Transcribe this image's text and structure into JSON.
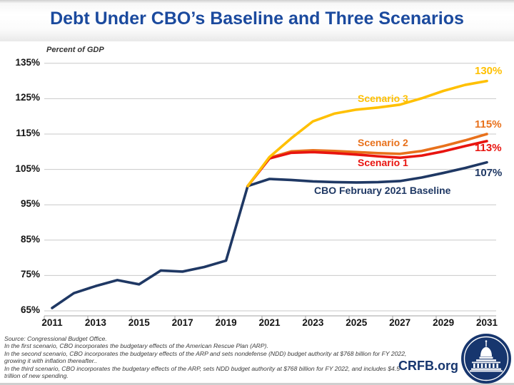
{
  "title": "Debt Under CBO’s Baseline and Three Scenarios",
  "chart_data": {
    "type": "line",
    "title": "Debt Under CBO’s Baseline and Three Scenarios",
    "ylabel": "Percent of GDP",
    "ylim": [
      65,
      135
    ],
    "y_ticks": [
      65,
      75,
      85,
      95,
      105,
      115,
      125,
      135
    ],
    "y_tick_suffix": "%",
    "x_range": [
      2011,
      2031
    ],
    "x_tick_labels": [
      "2011",
      "2013",
      "2015",
      "2017",
      "2019",
      "2021",
      "2023",
      "2025",
      "2027",
      "2029",
      "2031"
    ],
    "grid": "horizontal",
    "legend_position": "inline-annotations",
    "series": [
      {
        "name": "CBO February 2021 Baseline",
        "end_label": "107%",
        "color": "#1F3864",
        "start_year": 2011,
        "values": [
          65.8,
          70.0,
          72.0,
          73.7,
          72.5,
          76.4,
          76.1,
          77.4,
          79.2,
          100.3,
          102.3,
          102.0,
          101.6,
          101.4,
          101.3,
          101.4,
          101.7,
          102.7,
          104.0,
          105.4,
          107.0
        ]
      },
      {
        "name": "Scenario 2",
        "end_label": "115%",
        "color": "#E8711C",
        "start_year": 2020,
        "values": [
          100.3,
          108.3,
          110.1,
          110.4,
          110.2,
          109.9,
          109.6,
          109.4,
          110.2,
          111.6,
          113.2,
          115.0
        ]
      },
      {
        "name": "Scenario 1",
        "end_label": "113%",
        "color": "#E8140F",
        "start_year": 2020,
        "values": [
          100.3,
          108.1,
          109.7,
          109.9,
          109.6,
          109.2,
          108.7,
          108.3,
          108.9,
          110.1,
          111.6,
          113.0
        ]
      },
      {
        "name": "Scenario 3",
        "end_label": "130%",
        "color": "#FFC000",
        "start_year": 2020,
        "values": [
          100.3,
          108.5,
          113.8,
          118.6,
          120.8,
          121.9,
          122.5,
          123.3,
          125.1,
          127.2,
          128.9,
          130.0
        ]
      }
    ]
  },
  "footer": {
    "lines": [
      "Source: Congressional Budget Office.",
      "In the first scenario, CBO incorporates the budgetary effects of the American Rescue Plan (ARP).",
      "In the second scenario, CBO incorporates the budgetary effects of the ARP and sets nondefense (NDD) budget authority at $768 billion for FY 2022,",
      "growing it with inflation thereafter..",
      "In the third scenario, CBO incorporates the budgetary effects of the ARP, sets NDD budget authority at $768 billion for FY 2022, and includes $4.5",
      "trillion of new spending."
    ]
  },
  "branding": {
    "site": "CRFB.org",
    "logo": "capitol-icon"
  },
  "colors": {
    "title_blue": "#1B4A9E",
    "brand_navy": "#17366E",
    "baseline_navy": "#1F3864",
    "scenario1_red": "#E8140F",
    "scenario2_orange": "#E8711C",
    "scenario3_gold": "#FFC000",
    "gridline_gray": "#C9C9C9"
  }
}
